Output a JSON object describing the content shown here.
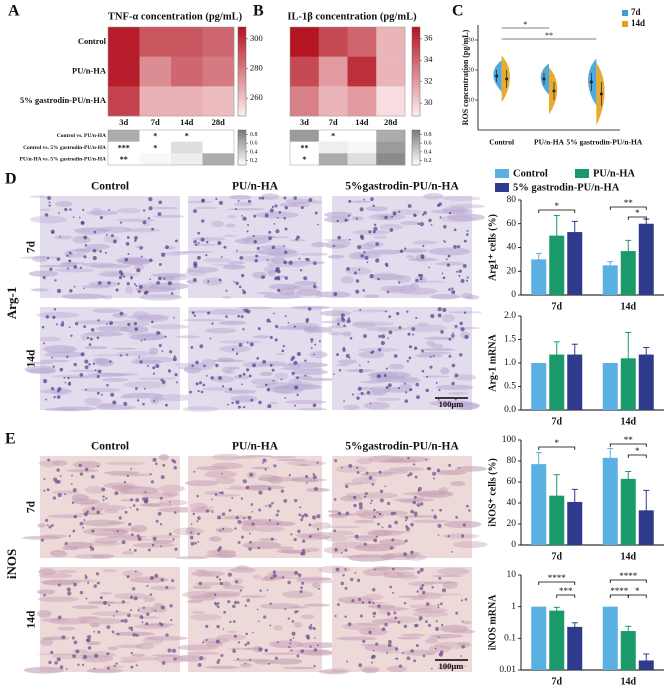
{
  "figure": {
    "panel_labels": [
      "A",
      "B",
      "C",
      "D",
      "E"
    ],
    "D": {
      "column_headers": [
        "Control",
        "PU/n-HA",
        "5%gastrodin-PU/n-HA"
      ],
      "row_headers": [
        "7d",
        "14d"
      ],
      "stain": "Arg-1",
      "scale_bar": "100μm"
    },
    "E": {
      "column_headers": [
        "Control",
        "PU/n-HA",
        "5%gastrodin-PU/n-HA"
      ],
      "row_headers": [
        "7d",
        "14d"
      ],
      "stain": "iNOS",
      "scale_bar": "100μm"
    }
  },
  "chart_data": [
    {
      "type": "heatmap",
      "title": "TNF-α concentration (pg/mL)",
      "rows": [
        "Control",
        "PU/n-HA",
        "5% gastrodin-PU/n-HA"
      ],
      "columns": [
        "3d",
        "7d",
        "14d",
        "28d"
      ],
      "values": [
        [
          305,
          290,
          290,
          285
        ],
        [
          305,
          275,
          285,
          280
        ],
        [
          295,
          265,
          265,
          262
        ]
      ],
      "clim": [
        248,
        308
      ],
      "cticks": [
        260,
        280,
        300
      ],
      "colors": [
        "#fdf0f1",
        "#b3121f"
      ]
    },
    {
      "type": "heatmap",
      "rows": [
        "Control vs. PU/n-HA",
        "Control vs. 5% gastrodin-PU/n-HA",
        "PU/n-HA vs. 5% gastrodin-PU/n-HA"
      ],
      "values": [
        [
          0.6,
          0.02,
          0.03,
          0.1
        ],
        [
          0.0005,
          0.03,
          0.3,
          0.1
        ],
        [
          0.005,
          0.15,
          0.2,
          0.6
        ]
      ],
      "value_labels": [
        [
          null,
          "*",
          "*",
          null
        ],
        [
          "***",
          "*",
          null,
          null
        ],
        [
          "**",
          null,
          null,
          null
        ]
      ],
      "clim": [
        0.1,
        0.9
      ],
      "cticks": [
        0.2,
        0.4,
        0.6,
        0.8
      ],
      "colors": [
        "#ffffff",
        "#7a7a7a"
      ]
    },
    {
      "type": "heatmap",
      "title": "IL-1β concentration (pg/mL)",
      "columns": [
        "3d",
        "7d",
        "14d",
        "28d"
      ],
      "values": [
        [
          37,
          35,
          34,
          31
        ],
        [
          35,
          32,
          36,
          31
        ],
        [
          33,
          31,
          32,
          29.5
        ]
      ],
      "clim": [
        28.8,
        37.1
      ],
      "cticks": [
        30,
        32,
        34,
        36
      ],
      "colors": [
        "#fdf0f1",
        "#b3121f"
      ]
    },
    {
      "type": "heatmap",
      "values": [
        [
          0.7,
          0.03,
          0.1,
          0.6
        ],
        [
          0.005,
          0.2,
          0.15,
          0.7
        ],
        [
          0.04,
          0.6,
          0.3,
          0.8
        ]
      ],
      "value_labels": [
        [
          null,
          "*",
          null,
          null
        ],
        [
          "**",
          null,
          null,
          null
        ],
        [
          "*",
          null,
          null,
          null
        ]
      ],
      "clim": [
        0.1,
        0.9
      ],
      "cticks": [
        0.2,
        0.4,
        0.6,
        0.8
      ],
      "colors": [
        "#ffffff",
        "#7a7a7a"
      ]
    },
    {
      "type": "violin",
      "ylabel": "ROS concentration (pg/mL)",
      "categories": [
        "Control",
        "PU/n-HA",
        "5% gastrodin-PU/n-HA"
      ],
      "series": [
        {
          "name": "7d",
          "color": "#3d9fd8",
          "values": [
            18,
            17,
            16
          ],
          "errors": [
            2,
            2,
            3
          ]
        },
        {
          "name": "14d",
          "color": "#e3a21a",
          "values": [
            17,
            13,
            12
          ],
          "errors": [
            3,
            3,
            4
          ]
        }
      ],
      "ylim": [
        0,
        35
      ],
      "yticks": [
        10,
        20,
        30
      ],
      "annotations": [
        "*",
        "**"
      ]
    },
    {
      "type": "bar",
      "ylabel": "Arg1⁺ cells (%)",
      "categories": [
        "7d",
        "14d"
      ],
      "legend": true,
      "series": [
        {
          "name": "Control",
          "color": "#5aafe3",
          "values": [
            30,
            25
          ],
          "errors": [
            5,
            3
          ]
        },
        {
          "name": "PU/n-HA",
          "color": "#1a9a6a",
          "values": [
            50,
            37
          ],
          "errors": [
            17,
            9
          ]
        },
        {
          "name": "5% gastrodin-PU/n-HA",
          "color": "#2e3a8c",
          "values": [
            53,
            60
          ],
          "errors": [
            9,
            4
          ]
        }
      ],
      "ylim": [
        0,
        80
      ],
      "yticks": [
        0,
        20,
        40,
        60,
        80
      ],
      "annotations": [
        "*",
        "**",
        "*"
      ]
    },
    {
      "type": "bar",
      "ylabel": "Arg-1 mRNA",
      "categories": [
        "7d",
        "14d"
      ],
      "series": [
        {
          "color": "#5aafe3",
          "values": [
            1.0,
            1.0
          ],
          "errors": [
            0,
            0
          ]
        },
        {
          "color": "#1a9a6a",
          "values": [
            1.18,
            1.1
          ],
          "errors": [
            0.27,
            0.55
          ]
        },
        {
          "color": "#2e3a8c",
          "values": [
            1.18,
            1.18
          ],
          "errors": [
            0.22,
            0.15
          ]
        }
      ],
      "ylim": [
        0,
        2
      ],
      "yticks": [
        {
          "value": 0,
          "label": "0.0"
        },
        0.5,
        {
          "value": 1,
          "label": "1.0"
        },
        1.5,
        {
          "value": 2,
          "label": "2.0"
        }
      ]
    },
    {
      "type": "bar",
      "ylabel": "iNOS⁺ cells (%)",
      "categories": [
        "7d",
        "14d"
      ],
      "series": [
        {
          "color": "#5aafe3",
          "values": [
            77,
            83
          ],
          "errors": [
            11,
            9
          ]
        },
        {
          "color": "#1a9a6a",
          "values": [
            47,
            63
          ],
          "errors": [
            20,
            7
          ]
        },
        {
          "color": "#2e3a8c",
          "values": [
            41,
            33
          ],
          "errors": [
            12,
            19
          ]
        }
      ],
      "ylim": [
        0,
        100
      ],
      "yticks": [
        0,
        20,
        40,
        60,
        80,
        100
      ],
      "annotations": [
        "*",
        "**",
        "*"
      ]
    },
    {
      "type": "bar",
      "ylabel": "iNOS mRNA",
      "categories": [
        "7d",
        "14d"
      ],
      "log": true,
      "series": [
        {
          "color": "#5aafe3",
          "values": [
            1,
            1
          ],
          "errors": [
            0,
            0
          ]
        },
        {
          "color": "#1a9a6a",
          "values": [
            0.75,
            0.17
          ],
          "errors": [
            0.2,
            0.07
          ]
        },
        {
          "color": "#2e3a8c",
          "values": [
            0.23,
            0.02
          ],
          "errors": [
            0.08,
            0.012
          ]
        }
      ],
      "ylim": [
        0.01,
        10
      ],
      "yticks": [
        0.01,
        0.1,
        1,
        10
      ],
      "annotations": [
        "****",
        "***",
        "****",
        "****",
        "*"
      ]
    }
  ]
}
